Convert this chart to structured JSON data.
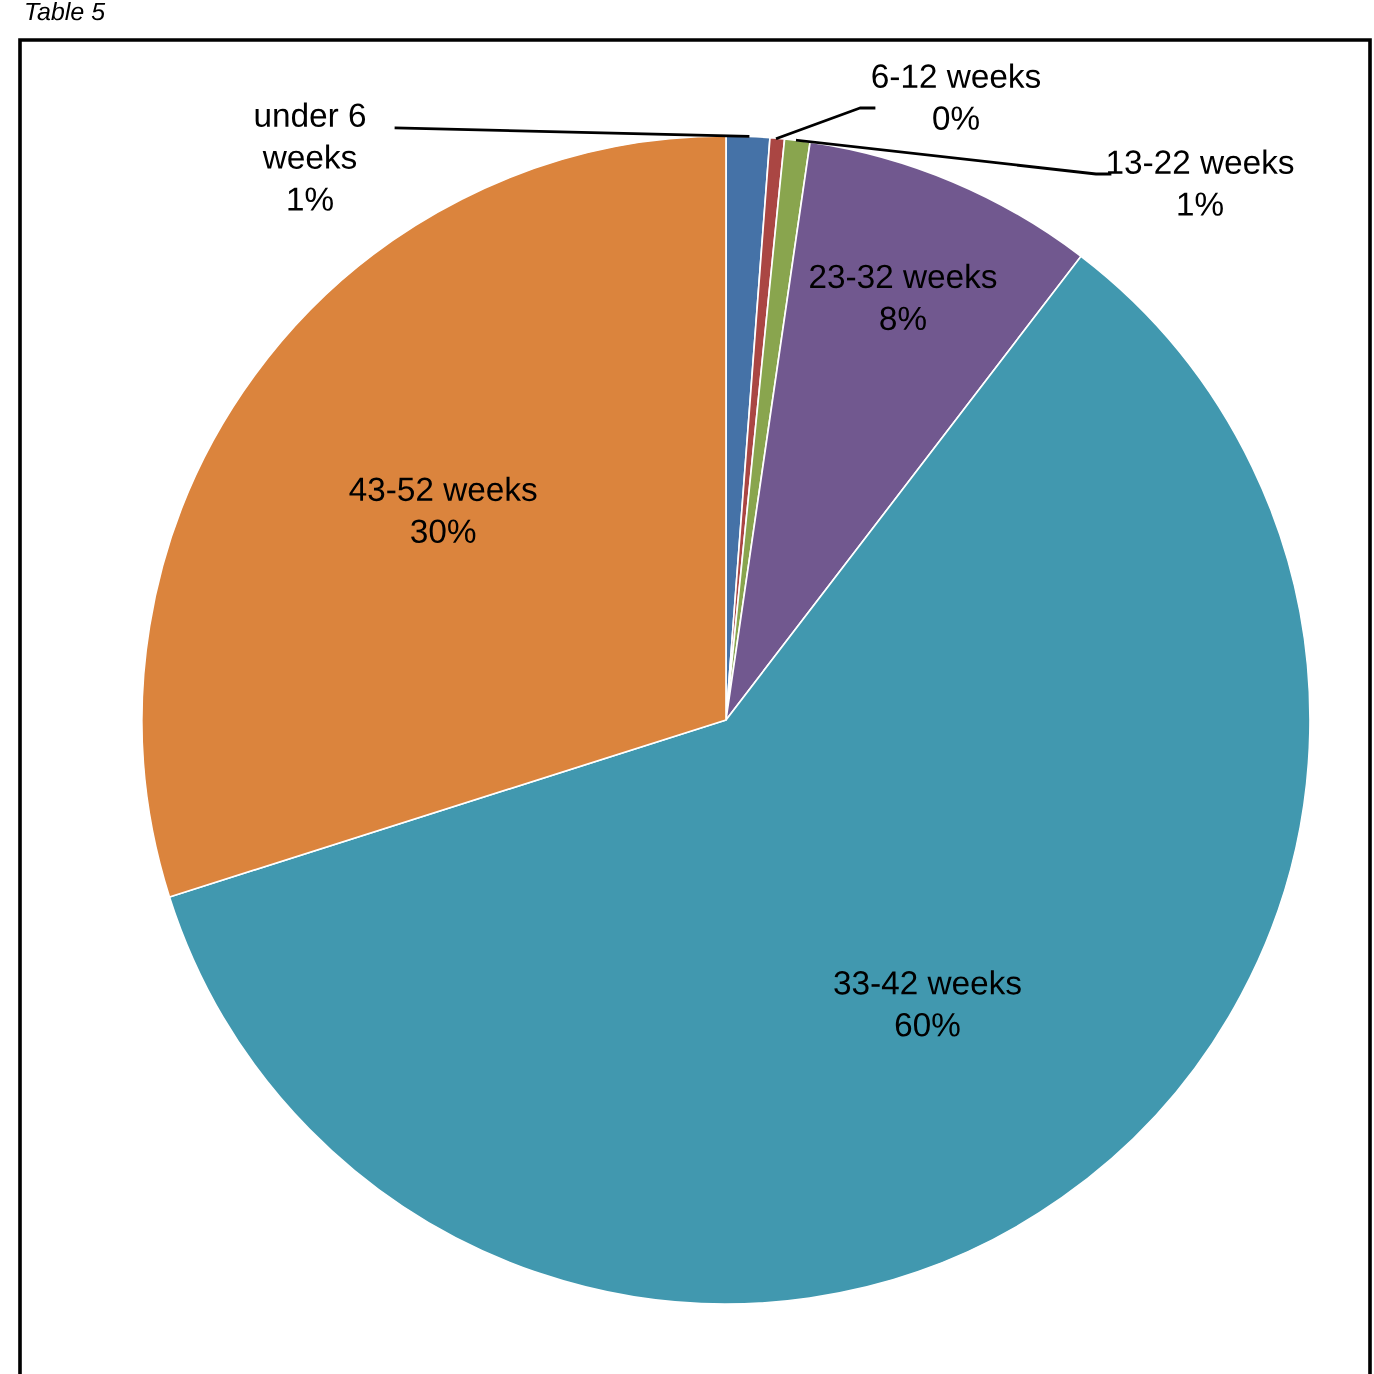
{
  "chart_data": {
    "type": "pie",
    "title": "Table 5",
    "categories": [
      "under 6 weeks",
      "6-12 weeks",
      "13-22 weeks",
      "23-32 weeks",
      "33-42 weeks",
      "43-52 weeks"
    ],
    "values": [
      1.2,
      0.4,
      0.7,
      8.1,
      59.7,
      29.9
    ],
    "value_labels": [
      "1%",
      "0%",
      "1%",
      "8%",
      "60%",
      "30%"
    ],
    "colors": [
      "#4572a7",
      "#aa4643",
      "#89a54e",
      "#71588f",
      "#4198af",
      "#db843d"
    ]
  }
}
